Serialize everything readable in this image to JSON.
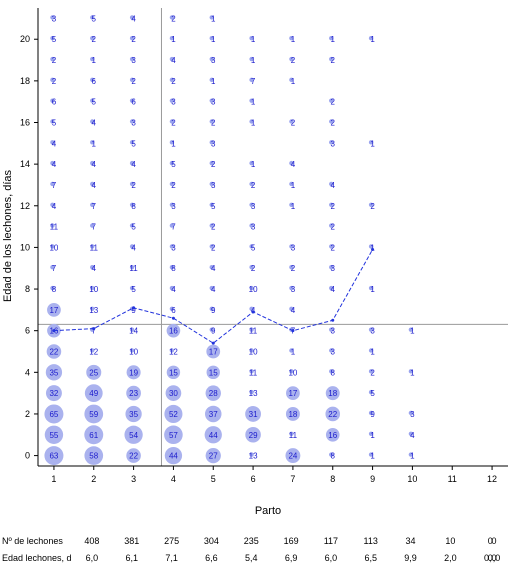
{
  "chart_data": {
    "type": "scatter",
    "xlabel": "Parto",
    "ylabel": "Edad de los lechones, días",
    "x_ticks": [
      1,
      2,
      3,
      4,
      5,
      6,
      7,
      8,
      9,
      10,
      11,
      12
    ],
    "y_ticks": [
      0,
      2,
      4,
      6,
      8,
      10,
      12,
      14,
      16,
      18,
      20
    ],
    "xlim": [
      0.6,
      12.4
    ],
    "ylim": [
      -0.5,
      21.5
    ],
    "reference_lines": {
      "vertical_x": 3.7,
      "horizontal_y": 6.3
    },
    "counts_by_age": [
      {
        "age": 21,
        "values": [
          3,
          5,
          4,
          2,
          1
        ]
      },
      {
        "age": 20,
        "values": [
          5,
          2,
          2,
          1,
          1,
          1,
          1,
          1,
          1
        ]
      },
      {
        "age": 19,
        "values": [
          2,
          1,
          3,
          4,
          3,
          1,
          2,
          2
        ]
      },
      {
        "age": 18,
        "values": [
          2,
          6,
          2,
          2,
          1,
          7,
          1
        ]
      },
      {
        "age": 17,
        "values": [
          6,
          5,
          6,
          3,
          3,
          1,
          null,
          2
        ]
      },
      {
        "age": 16,
        "values": [
          5,
          4,
          3,
          2,
          2,
          1,
          2,
          2
        ]
      },
      {
        "age": 15,
        "values": [
          4,
          1,
          5,
          1,
          3,
          null,
          null,
          3,
          1
        ]
      },
      {
        "age": 14,
        "values": [
          4,
          4,
          4,
          5,
          2,
          1,
          4
        ]
      },
      {
        "age": 13,
        "values": [
          7,
          4,
          2,
          2,
          3,
          2,
          1,
          4
        ]
      },
      {
        "age": 12,
        "values": [
          4,
          7,
          8,
          3,
          5,
          3,
          1,
          2,
          2
        ]
      },
      {
        "age": 11,
        "values": [
          11,
          7,
          5,
          7,
          2,
          3,
          null,
          2
        ]
      },
      {
        "age": 10,
        "values": [
          10,
          11,
          4,
          3,
          2,
          5,
          3,
          2,
          1
        ]
      },
      {
        "age": 9,
        "values": [
          7,
          4,
          11,
          8,
          4,
          2,
          2,
          3
        ]
      },
      {
        "age": 8,
        "values": [
          8,
          10,
          5,
          4,
          4,
          10,
          3,
          4,
          1
        ]
      },
      {
        "age": 7,
        "values": [
          17,
          13,
          9,
          6,
          9,
          4,
          4
        ]
      },
      {
        "age": 6,
        "values": [
          16,
          7,
          14,
          16,
          9,
          11,
          7,
          3,
          3,
          1
        ]
      },
      {
        "age": 5,
        "values": [
          22,
          12,
          10,
          12,
          17,
          10,
          1,
          3,
          1
        ]
      },
      {
        "age": 4,
        "values": [
          35,
          25,
          19,
          15,
          15,
          11,
          10,
          8,
          2,
          1
        ]
      },
      {
        "age": 3,
        "values": [
          32,
          49,
          23,
          30,
          28,
          13,
          17,
          18,
          5
        ]
      },
      {
        "age": 2,
        "values": [
          65,
          59,
          35,
          52,
          37,
          31,
          18,
          22,
          9,
          3
        ]
      },
      {
        "age": 1,
        "values": [
          55,
          61,
          54,
          57,
          44,
          29,
          11,
          16,
          1,
          4
        ]
      },
      {
        "age": 0,
        "values": [
          63,
          58,
          22,
          44,
          27,
          13,
          24,
          8,
          1,
          1
        ]
      }
    ],
    "series": [
      {
        "style": "dashed",
        "x": [
          1,
          2,
          3,
          4,
          5,
          6,
          7,
          8,
          9
        ],
        "y": [
          6.0,
          6.1,
          7.1,
          6.6,
          5.4,
          6.9,
          6.0,
          6.5,
          9.9
        ]
      }
    ],
    "bubble_threshold": 15
  },
  "footer": {
    "rows": [
      {
        "label": "Nº de lechones",
        "values": [
          "408",
          "381",
          "275",
          "304",
          "235",
          "169",
          "117",
          "113",
          "34",
          "10",
          "0",
          "0"
        ]
      },
      {
        "label": "Edad lechones, d",
        "values": [
          "6,0",
          "6,1",
          "7,1",
          "6,6",
          "5,4",
          "6,9",
          "6,0",
          "6,5",
          "9,9",
          "2,0",
          "0,0",
          "0,0"
        ]
      }
    ]
  }
}
